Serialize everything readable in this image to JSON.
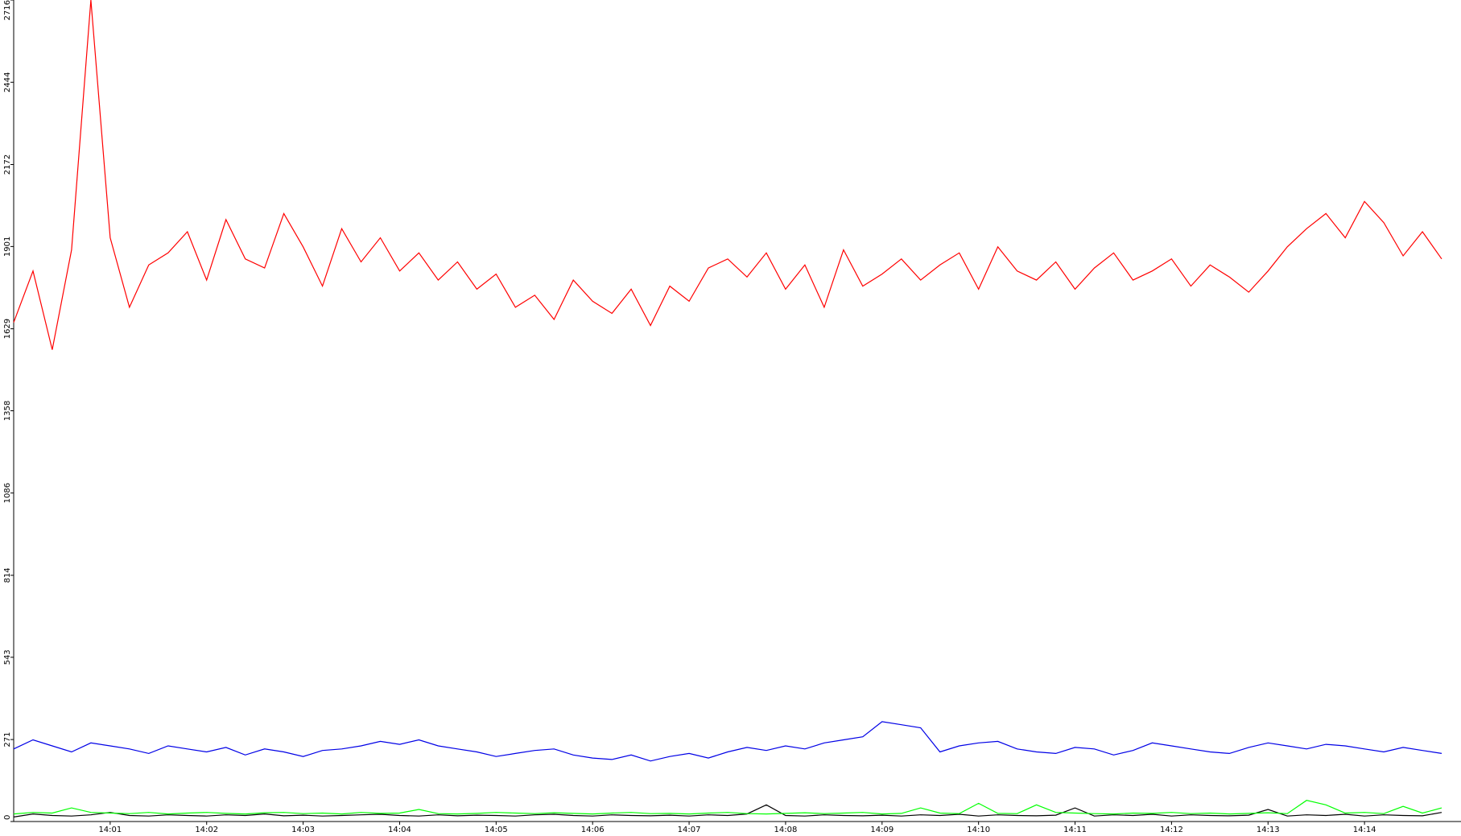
{
  "chart_data": {
    "type": "line",
    "x": [
      0,
      0.2,
      0.4,
      0.6,
      0.8,
      1,
      1.2,
      1.4,
      1.6,
      1.8,
      2,
      2.2,
      2.4,
      2.6,
      2.8,
      3,
      3.2,
      3.4,
      3.6,
      3.8,
      4,
      4.2,
      4.4,
      4.6,
      4.8,
      5,
      5.2,
      5.4,
      5.6,
      5.8,
      6,
      6.2,
      6.4,
      6.6,
      6.8,
      7,
      7.2,
      7.4,
      7.6,
      7.8,
      8,
      8.2,
      8.4,
      8.6,
      8.8,
      9,
      9.2,
      9.4,
      9.6,
      9.8,
      10,
      10.2,
      10.4,
      10.6,
      10.8,
      11,
      11.2,
      11.4,
      11.6,
      11.8,
      12,
      12.2,
      12.4,
      12.6,
      12.8,
      13,
      13.2,
      13.4,
      13.6,
      13.8,
      14,
      14.2,
      14.4,
      14.6,
      14.8
    ],
    "series": [
      {
        "color": "#ff0000",
        "values": [
          1650,
          1820,
          1560,
          1890,
          2716,
          1930,
          1700,
          1840,
          1880,
          1950,
          1790,
          1990,
          1860,
          1830,
          2010,
          1900,
          1770,
          1960,
          1850,
          1930,
          1820,
          1880,
          1790,
          1850,
          1760,
          1810,
          1700,
          1740,
          1660,
          1790,
          1720,
          1680,
          1760,
          1640,
          1770,
          1720,
          1830,
          1860,
          1800,
          1880,
          1760,
          1840,
          1700,
          1890,
          1770,
          1810,
          1860,
          1790,
          1840,
          1880,
          1760,
          1900,
          1820,
          1790,
          1850,
          1760,
          1830,
          1880,
          1790,
          1820,
          1860,
          1770,
          1840,
          1800,
          1750,
          1820,
          1900,
          1960,
          2010,
          1930,
          2050,
          1980,
          1870,
          1950,
          1860
        ]
      },
      {
        "color": "#0000e6",
        "values": [
          240,
          270,
          250,
          230,
          260,
          250,
          240,
          225,
          250,
          240,
          230,
          245,
          220,
          240,
          230,
          215,
          235,
          240,
          250,
          265,
          255,
          270,
          250,
          240,
          230,
          215,
          225,
          235,
          240,
          220,
          210,
          205,
          220,
          200,
          215,
          225,
          210,
          230,
          245,
          235,
          250,
          240,
          260,
          270,
          280,
          330,
          320,
          310,
          230,
          250,
          260,
          265,
          240,
          230,
          225,
          245,
          240,
          220,
          235,
          260,
          250,
          240,
          230,
          225,
          245,
          260,
          250,
          240,
          255,
          250,
          240,
          230,
          245,
          235,
          225
        ]
      },
      {
        "color": "#00ff00",
        "values": [
          25,
          30,
          28,
          45,
          30,
          28,
          26,
          30,
          25,
          28,
          30,
          27,
          25,
          29,
          30,
          26,
          28,
          25,
          30,
          27,
          28,
          40,
          26,
          25,
          27,
          30,
          28,
          26,
          29,
          27,
          25,
          28,
          30,
          26,
          27,
          25,
          28,
          30,
          26,
          25,
          27,
          29,
          26,
          28,
          30,
          25,
          27,
          45,
          28,
          26,
          60,
          27,
          26,
          55,
          30,
          28,
          26,
          25,
          28,
          27,
          30,
          26,
          28,
          25,
          27,
          29,
          26,
          70,
          55,
          28,
          30,
          26,
          50,
          28,
          45
        ]
      },
      {
        "color": "#000000",
        "values": [
          15,
          25,
          20,
          18,
          22,
          30,
          20,
          18,
          22,
          20,
          18,
          22,
          20,
          25,
          19,
          21,
          18,
          20,
          22,
          24,
          20,
          18,
          22,
          19,
          21,
          20,
          18,
          22,
          24,
          20,
          18,
          22,
          20,
          19,
          21,
          18,
          22,
          20,
          25,
          55,
          20,
          18,
          22,
          20,
          19,
          21,
          18,
          22,
          20,
          24,
          18,
          22,
          20,
          19,
          21,
          45,
          18,
          22,
          20,
          24,
          18,
          22,
          20,
          19,
          21,
          40,
          18,
          22,
          20,
          24,
          18,
          22,
          20,
          19,
          30
        ]
      }
    ],
    "xlim": [
      0,
      15
    ],
    "xticks": [
      {
        "value": 1,
        "label": "14:01"
      },
      {
        "value": 2,
        "label": "14:02"
      },
      {
        "value": 3,
        "label": "14:03"
      },
      {
        "value": 4,
        "label": "14:04"
      },
      {
        "value": 5,
        "label": "14:05"
      },
      {
        "value": 6,
        "label": "14:06"
      },
      {
        "value": 7,
        "label": "14:07"
      },
      {
        "value": 8,
        "label": "14:08"
      },
      {
        "value": 9,
        "label": "14:09"
      },
      {
        "value": 10,
        "label": "14:10"
      },
      {
        "value": 11,
        "label": "14:11"
      },
      {
        "value": 12,
        "label": "14:12"
      },
      {
        "value": 13,
        "label": "14:13"
      },
      {
        "value": 14,
        "label": "14:14"
      }
    ],
    "ylim": [
      0,
      2716
    ],
    "yticks": [
      0,
      271,
      543,
      814,
      1086,
      1358,
      1629,
      1901,
      2172,
      2444,
      2716
    ]
  }
}
